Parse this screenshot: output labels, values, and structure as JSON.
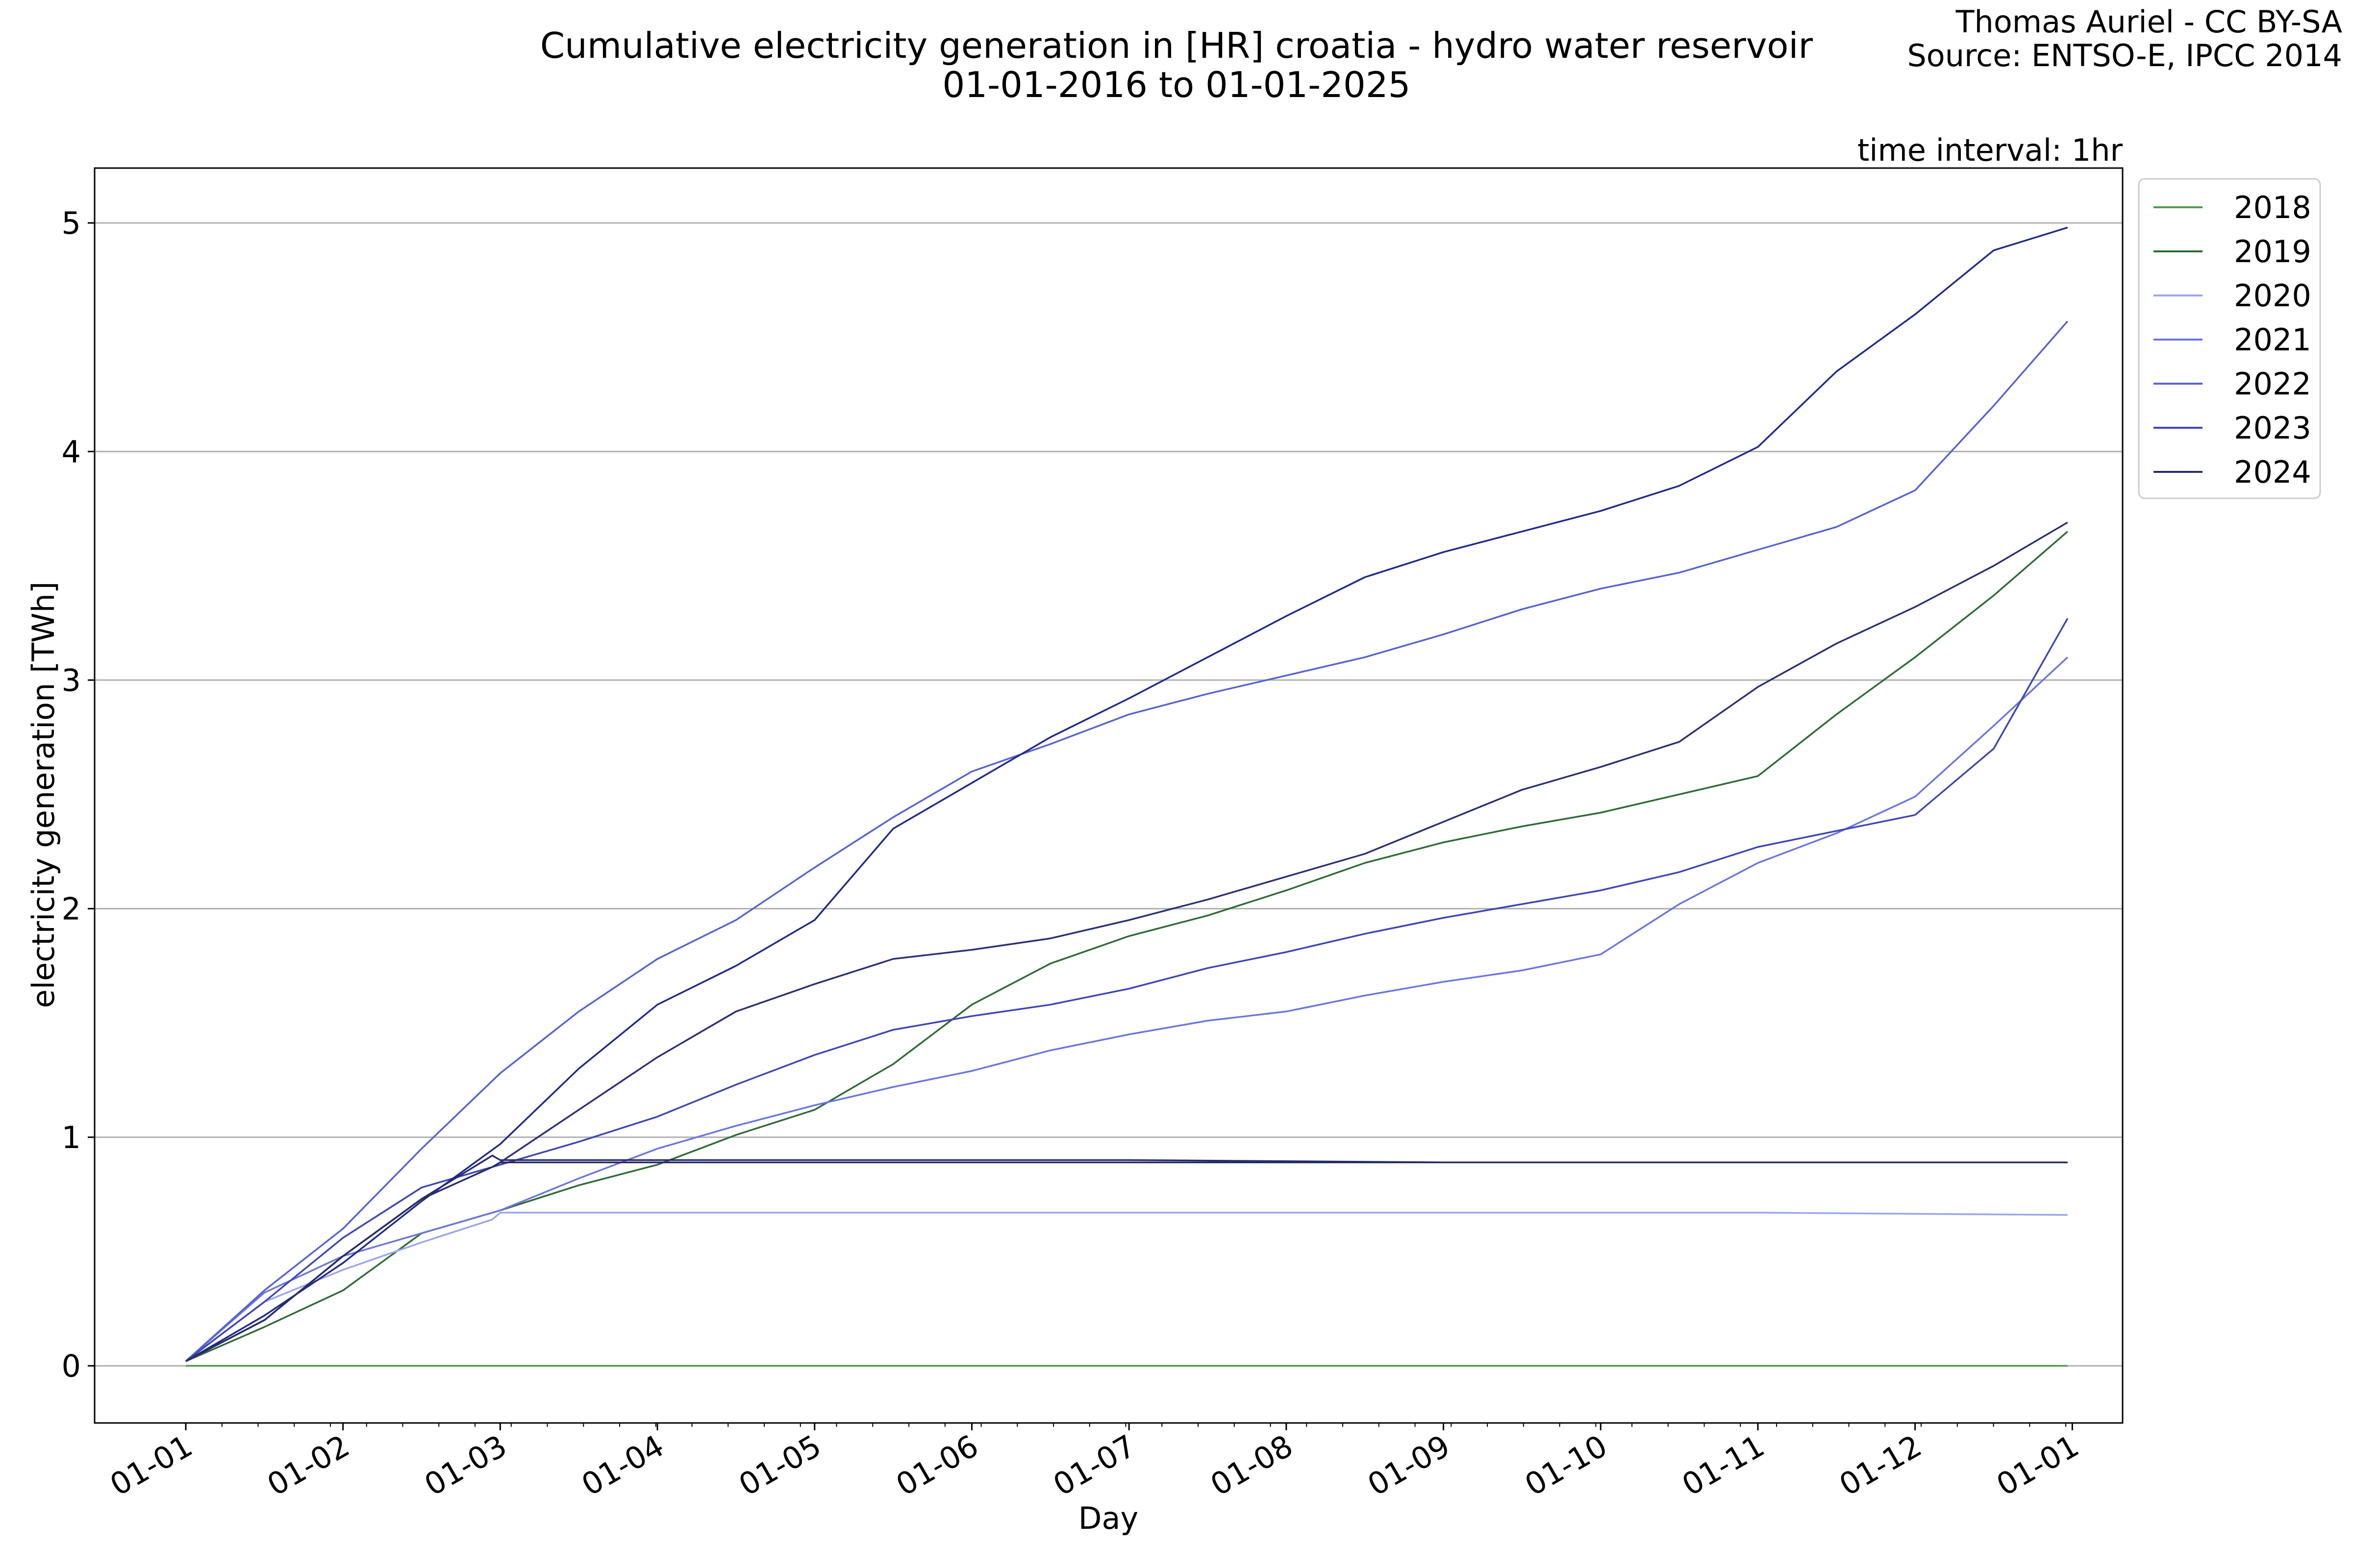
{
  "chart_data": {
    "type": "line",
    "title": "Cumulative electricity generation in [HR] croatia - hydro water reservoir",
    "subtitle": "01-01-2016 to 01-01-2025",
    "credit": [
      "Thomas Auriel - CC BY-SA",
      "Source: ENTSO-E, IPCC 2014"
    ],
    "annotation": "time interval: 1hr",
    "xlabel": "Day",
    "ylabel": "electricity generation [TWh]",
    "x_unit": "month of year",
    "x_ticks": [
      {
        "month": 0,
        "label": "01-01"
      },
      {
        "month": 1,
        "label": "01-02"
      },
      {
        "month": 2,
        "label": "01-03"
      },
      {
        "month": 3,
        "label": "01-04"
      },
      {
        "month": 4,
        "label": "01-05"
      },
      {
        "month": 5,
        "label": "01-06"
      },
      {
        "month": 6,
        "label": "01-07"
      },
      {
        "month": 7,
        "label": "01-08"
      },
      {
        "month": 8,
        "label": "01-09"
      },
      {
        "month": 9,
        "label": "01-10"
      },
      {
        "month": 10,
        "label": "01-11"
      },
      {
        "month": 11,
        "label": "01-12"
      },
      {
        "month": 12,
        "label": "01-01"
      }
    ],
    "y_ticks": [
      0,
      1,
      2,
      3,
      4,
      5
    ],
    "xlim": [
      -0.58,
      12.32
    ],
    "ylim": [
      -0.25,
      5.24
    ],
    "grid": "horizontal",
    "legend_position": "outside-top-right",
    "series": [
      {
        "name": "2018",
        "color": "#4e9a4e",
        "x": [
          0,
          2,
          4,
          6,
          8,
          10,
          11.97
        ],
        "y": [
          0,
          0,
          0,
          0,
          0,
          0,
          0
        ]
      },
      {
        "name": "2019",
        "color": "#2e6b35",
        "x": [
          0,
          0.5,
          1,
          1.5,
          2,
          2.5,
          3,
          3.5,
          4,
          4.5,
          5,
          5.5,
          6,
          6.5,
          7,
          7.5,
          8,
          8.5,
          9,
          9.5,
          10,
          10.5,
          11,
          11.5,
          11.97
        ],
        "y": [
          0.02,
          0.17,
          0.33,
          0.58,
          0.68,
          0.79,
          0.88,
          1.01,
          1.12,
          1.32,
          1.58,
          1.76,
          1.88,
          1.97,
          2.08,
          2.2,
          2.29,
          2.36,
          2.42,
          2.5,
          2.58,
          2.85,
          3.1,
          3.37,
          3.65
        ]
      },
      {
        "name": "2020",
        "color": "#9aa6ee",
        "x": [
          0,
          0.5,
          1,
          1.5,
          1.95,
          2.0,
          4,
          6,
          8,
          10,
          11.97
        ],
        "y": [
          0.02,
          0.28,
          0.42,
          0.54,
          0.64,
          0.67,
          0.67,
          0.67,
          0.67,
          0.67,
          0.66
        ]
      },
      {
        "name": "2021",
        "color": "#6a76de",
        "x": [
          0,
          0.5,
          1,
          1.5,
          2,
          2.5,
          3,
          3.5,
          4,
          4.5,
          5,
          5.5,
          6,
          6.5,
          7,
          7.5,
          8,
          8.5,
          9,
          9.5,
          10,
          10.5,
          11,
          11.5,
          11.97
        ],
        "y": [
          0.02,
          0.32,
          0.48,
          0.58,
          0.68,
          0.82,
          0.95,
          1.05,
          1.14,
          1.22,
          1.29,
          1.38,
          1.45,
          1.51,
          1.55,
          1.62,
          1.68,
          1.73,
          1.8,
          2.02,
          2.2,
          2.33,
          2.49,
          2.8,
          3.1
        ]
      },
      {
        "name": "2022",
        "color": "#5563d2",
        "x": [
          0,
          0.5,
          1,
          1.5,
          2,
          2.5,
          3,
          3.5,
          4,
          4.5,
          5,
          5.5,
          6,
          6.5,
          7,
          7.5,
          8,
          8.5,
          9,
          9.5,
          10,
          10.5,
          11,
          11.5,
          11.97
        ],
        "y": [
          0.02,
          0.33,
          0.6,
          0.95,
          1.28,
          1.55,
          1.78,
          1.95,
          2.18,
          2.4,
          2.6,
          2.72,
          2.85,
          2.94,
          3.02,
          3.1,
          3.2,
          3.31,
          3.4,
          3.47,
          3.57,
          3.67,
          3.83,
          4.2,
          4.57
        ]
      },
      {
        "name": "2023",
        "color": "#3d46b4",
        "x": [
          0,
          0.5,
          1,
          1.5,
          2,
          2.5,
          3,
          3.5,
          4,
          4.5,
          5,
          5.5,
          6,
          6.5,
          7,
          7.5,
          8,
          8.5,
          9,
          9.5,
          10,
          10.5,
          11,
          11.5,
          11.97
        ],
        "y": [
          0.02,
          0.28,
          0.56,
          0.78,
          0.88,
          0.98,
          1.09,
          1.23,
          1.36,
          1.47,
          1.53,
          1.58,
          1.65,
          1.74,
          1.81,
          1.89,
          1.96,
          2.02,
          2.08,
          2.16,
          2.27,
          2.34,
          2.41,
          2.7,
          3.27
        ]
      },
      {
        "name": "2024",
        "color": "#262b6e",
        "x": [
          0,
          0.5,
          1,
          1.5,
          1.95,
          2.0,
          4,
          6,
          8,
          10,
          11.97
        ],
        "y": [
          0.02,
          0.2,
          0.48,
          0.73,
          0.92,
          0.9,
          0.9,
          0.9,
          0.89,
          0.89,
          0.89
        ]
      },
      {
        "name": "",
        "color": "#1e2a8a",
        "x": [
          0,
          0.5,
          1,
          1.5,
          2,
          2.5,
          3,
          3.5,
          4,
          4.5,
          5,
          5.5,
          6,
          6.5,
          7,
          7.5,
          8,
          8.5,
          9,
          9.5,
          10,
          10.5,
          11,
          11.5,
          11.97
        ],
        "y": [
          0.02,
          0.22,
          0.45,
          0.72,
          0.97,
          1.3,
          1.58,
          1.75,
          1.95,
          2.35,
          2.55,
          2.75,
          2.92,
          3.1,
          3.28,
          3.45,
          3.56,
          3.65,
          3.74,
          3.85,
          4.02,
          4.35,
          4.6,
          4.88,
          4.98
        ]
      },
      {
        "name": "",
        "color": "#272c66",
        "x": [
          0,
          0.5,
          1,
          1.5,
          1.95,
          2.0,
          4,
          6,
          8,
          10,
          11.97
        ],
        "y": [
          0.02,
          0.2,
          0.48,
          0.73,
          0.87,
          0.89,
          0.89,
          0.89,
          0.89,
          0.89,
          0.89
        ]
      },
      {
        "name": "",
        "color": "#2b2f73",
        "x": [
          2.0,
          2.5,
          3,
          3.5,
          4,
          4.5,
          5,
          5.5,
          6,
          6.5,
          7,
          7.5,
          8,
          8.5,
          9,
          9.5,
          10,
          10.5,
          11,
          11.5,
          11.97
        ],
        "y": [
          0.89,
          1.12,
          1.35,
          1.55,
          1.67,
          1.78,
          1.82,
          1.87,
          1.95,
          2.04,
          2.14,
          2.24,
          2.38,
          2.52,
          2.62,
          2.73,
          2.97,
          3.16,
          3.32,
          3.5,
          3.69
        ]
      }
    ]
  }
}
